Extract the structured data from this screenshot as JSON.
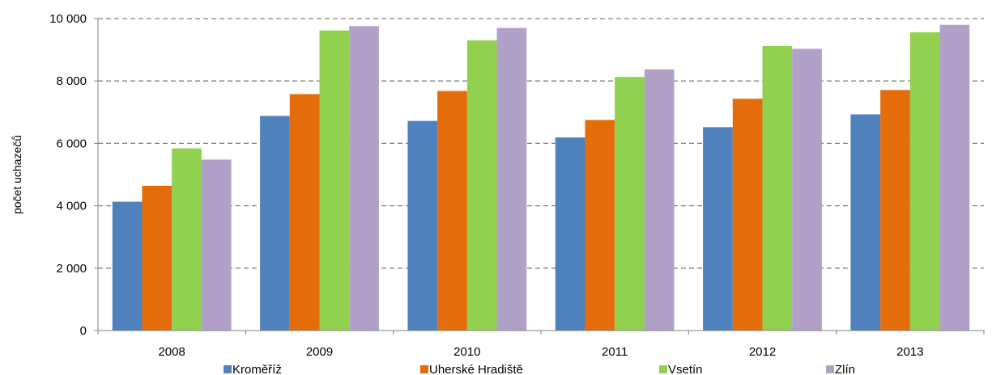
{
  "chart_data": {
    "type": "bar",
    "title": "",
    "xlabel": "",
    "ylabel": "počet uchazečů",
    "categories": [
      "2008",
      "2009",
      "2010",
      "2011",
      "2012",
      "2013"
    ],
    "series": [
      {
        "name": "Kroměříž",
        "color": "#4F81BD",
        "values": [
          4130,
          6880,
          6720,
          6190,
          6520,
          6930
        ]
      },
      {
        "name": "Uherské Hradiště",
        "color": "#E46C0A",
        "values": [
          4640,
          7580,
          7680,
          6750,
          7430,
          7710
        ]
      },
      {
        "name": "Vsetín",
        "color": "#92D050",
        "values": [
          5840,
          9620,
          9300,
          8130,
          9120,
          9560
        ]
      },
      {
        "name": "Zlín",
        "color": "#B1A0C7",
        "values": [
          5480,
          9760,
          9700,
          8370,
          9030,
          9800
        ]
      }
    ],
    "ylim": [
      0,
      10000
    ],
    "yticks": [
      0,
      2000,
      4000,
      6000,
      8000,
      10000
    ],
    "ytick_labels": [
      "0",
      "2 000",
      "4 000",
      "6 000",
      "8 000",
      "10 000"
    ],
    "grid": true,
    "gridline_style": "dashed",
    "legend_position": "bottom"
  }
}
